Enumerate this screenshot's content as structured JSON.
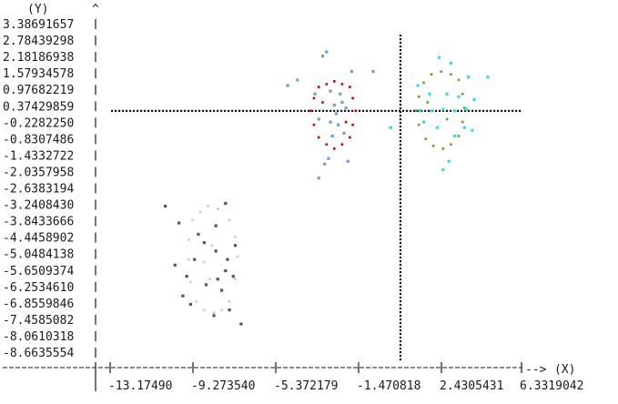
{
  "chart_data": {
    "type": "scatter",
    "ylabel": "(Y)",
    "y_arrow": "^",
    "xlabel": "(X)",
    "x_arrow": "-->",
    "y_tick_labels": [
      "3.38691657",
      "2.78439298",
      "2.18186938",
      "1.57934578",
      "0.97682219",
      "0.37429859",
      "-0.2282250",
      "-0.8307486",
      "-1.4332722",
      "-2.0357958",
      "-2.6383194",
      "-3.2408430",
      "-3.8433666",
      "-4.4458902",
      "-5.0484138",
      "-5.6509374",
      "-6.2534610",
      "-6.8559846",
      "-7.4585082",
      "-8.0610318",
      "-8.6635554"
    ],
    "x_tick_labels": [
      "-13.17490",
      "-9.273540",
      "-5.372179",
      "-1.470818",
      "2.4305431",
      "6.3319042"
    ],
    "x_range": [
      -15.13,
      6.33
    ],
    "y_range": [
      -8.96,
      3.69
    ],
    "crosshair": {
      "x": 0.0,
      "y": 0.0
    },
    "series": [
      {
        "color": "#cc0000",
        "shape": "ring",
        "points": [
          [
            -3.4,
            1.05
          ],
          [
            -2.6,
            0.85
          ],
          [
            -2.3,
            0.0
          ],
          [
            -2.6,
            -0.95
          ],
          [
            -3.4,
            -1.35
          ],
          [
            -4.2,
            -0.95
          ],
          [
            -4.6,
            0.0
          ],
          [
            -4.2,
            0.85
          ],
          [
            -3.0,
            0.95
          ],
          [
            -3.8,
            0.95
          ],
          [
            -2.45,
            0.45
          ],
          [
            -2.45,
            -0.5
          ],
          [
            -3.0,
            -1.2
          ],
          [
            -3.8,
            -1.2
          ],
          [
            -4.45,
            -0.5
          ],
          [
            -4.45,
            0.45
          ],
          [
            -2.8,
            -0.4
          ],
          [
            -4.0,
            0.3
          ]
        ]
      },
      {
        "color": "#6a9fd8",
        "shape": "cloud",
        "points": [
          [
            -4.0,
            1.95
          ],
          [
            -3.8,
            2.1
          ],
          [
            -3.4,
            0.2
          ],
          [
            -3.1,
            0.6
          ],
          [
            -3.6,
            -0.4
          ],
          [
            -2.9,
            -0.8
          ],
          [
            -4.2,
            -0.3
          ],
          [
            -3.0,
            0.3
          ],
          [
            -3.3,
            -0.1
          ],
          [
            -2.5,
            1.4
          ],
          [
            -1.4,
            1.4
          ],
          [
            -5.3,
            1.1
          ],
          [
            -3.9,
            -1.9
          ],
          [
            -4.2,
            -2.4
          ],
          [
            -3.7,
            -1.7
          ],
          [
            -2.7,
            -1.8
          ],
          [
            -3.5,
            -0.9
          ],
          [
            -4.4,
            0.6
          ],
          [
            -3.2,
            -0.5
          ],
          [
            -2.8,
            0.1
          ],
          [
            -5.8,
            0.9
          ],
          [
            -3.6,
            0.7
          ]
        ]
      },
      {
        "color": "#6aa020",
        "shape": "ring",
        "points": [
          [
            2.1,
            1.4
          ],
          [
            3.0,
            1.1
          ],
          [
            3.3,
            0.1
          ],
          [
            3.0,
            -0.9
          ],
          [
            2.2,
            -1.35
          ],
          [
            1.3,
            -1.0
          ],
          [
            0.8,
            0.0
          ],
          [
            1.2,
            1.0
          ],
          [
            2.6,
            1.3
          ],
          [
            1.6,
            1.3
          ],
          [
            3.2,
            0.6
          ],
          [
            3.2,
            -0.4
          ],
          [
            2.6,
            -1.2
          ],
          [
            1.7,
            -1.25
          ],
          [
            0.95,
            -0.5
          ],
          [
            0.95,
            0.5
          ],
          [
            2.4,
            -0.3
          ],
          [
            1.4,
            0.3
          ]
        ]
      },
      {
        "color": "#33dddd",
        "shape": "cloud",
        "points": [
          [
            1.0,
            0.0
          ],
          [
            1.6,
            0.0
          ],
          [
            2.2,
            0.05
          ],
          [
            2.8,
            0.0
          ],
          [
            3.4,
            0.05
          ],
          [
            3.8,
            0.4
          ],
          [
            3.3,
            -0.6
          ],
          [
            2.8,
            -0.9
          ],
          [
            2.0,
            1.9
          ],
          [
            2.6,
            1.7
          ],
          [
            4.5,
            1.2
          ],
          [
            3.5,
            1.2
          ],
          [
            2.5,
            -1.8
          ],
          [
            2.2,
            -2.1
          ],
          [
            -0.5,
            -0.6
          ],
          [
            1.5,
            0.6
          ],
          [
            2.4,
            0.6
          ],
          [
            3.7,
            -0.7
          ],
          [
            0.9,
            0.9
          ],
          [
            1.2,
            -0.4
          ],
          [
            3.0,
            0.5
          ],
          [
            1.9,
            -0.6
          ]
        ]
      },
      {
        "color": "#cccccc",
        "shape": "ring",
        "points": [
          [
            -9.9,
            -3.4
          ],
          [
            -8.8,
            -3.9
          ],
          [
            -8.4,
            -5.2
          ],
          [
            -8.8,
            -6.8
          ],
          [
            -9.6,
            -7.2
          ],
          [
            -10.5,
            -6.8
          ],
          [
            -10.9,
            -5.3
          ],
          [
            -10.7,
            -3.9
          ],
          [
            -9.4,
            -3.5
          ],
          [
            -10.3,
            -3.6
          ],
          [
            -8.5,
            -4.5
          ],
          [
            -8.5,
            -6.0
          ],
          [
            -9.2,
            -7.1
          ],
          [
            -10.1,
            -7.1
          ],
          [
            -10.8,
            -6.1
          ],
          [
            -10.9,
            -4.6
          ],
          [
            -9.7,
            -4.8
          ],
          [
            -9.8,
            -6.0
          ],
          [
            -10.1,
            -5.4
          ]
        ]
      },
      {
        "color": "#555555",
        "shape": "cloud",
        "points": [
          [
            -12.1,
            -3.4
          ],
          [
            -9.0,
            -3.3
          ],
          [
            -11.4,
            -4.0
          ],
          [
            -9.5,
            -4.1
          ],
          [
            -10.6,
            -5.3
          ],
          [
            -9.0,
            -5.7
          ],
          [
            -8.6,
            -5.9
          ],
          [
            -9.2,
            -6.4
          ],
          [
            -11.2,
            -6.6
          ],
          [
            -10.8,
            -6.9
          ],
          [
            -9.6,
            -7.3
          ],
          [
            -8.2,
            -7.6
          ],
          [
            -8.8,
            -7.1
          ],
          [
            -10.0,
            -6.2
          ],
          [
            -9.5,
            -5.0
          ],
          [
            -11.6,
            -5.5
          ],
          [
            -10.4,
            -4.4
          ],
          [
            -8.9,
            -5.3
          ],
          [
            -9.4,
            -6.0
          ],
          [
            -10.1,
            -4.7
          ],
          [
            -11.0,
            -5.9
          ],
          [
            -8.5,
            -4.8
          ]
        ]
      }
    ]
  }
}
